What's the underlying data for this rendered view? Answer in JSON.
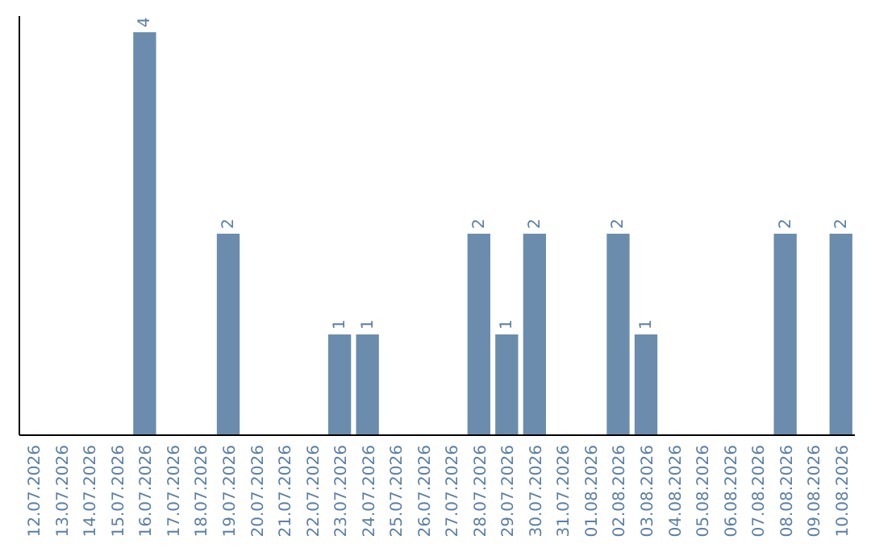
{
  "chart_data": {
    "type": "bar",
    "categories": [
      "12.07.2026",
      "13.07.2026",
      "14.07.2026",
      "15.07.2026",
      "16.07.2026",
      "17.07.2026",
      "18.07.2026",
      "19.07.2026",
      "20.07.2026",
      "21.07.2026",
      "22.07.2026",
      "23.07.2026",
      "24.07.2026",
      "25.07.2026",
      "26.07.2026",
      "27.07.2026",
      "28.07.2026",
      "29.07.2026",
      "30.07.2026",
      "31.07.2026",
      "01.08.2026",
      "02.08.2026",
      "03.08.2026",
      "04.08.2026",
      "05.08.2026",
      "06.08.2026",
      "07.08.2026",
      "08.08.2026",
      "09.08.2026",
      "10.08.2026"
    ],
    "values": [
      0,
      0,
      0,
      0,
      4,
      0,
      0,
      2,
      0,
      0,
      0,
      1,
      1,
      0,
      0,
      0,
      2,
      1,
      2,
      0,
      0,
      2,
      1,
      0,
      0,
      0,
      0,
      2,
      0,
      2
    ],
    "value_labels": [
      null,
      null,
      null,
      null,
      "4",
      null,
      null,
      "2",
      null,
      null,
      null,
      "1",
      "1",
      null,
      null,
      null,
      "2",
      "1",
      "2",
      null,
      null,
      "2",
      "1",
      null,
      null,
      null,
      null,
      "2",
      null,
      "2"
    ],
    "color": "#6b8cad",
    "tick_labels": "x"
  }
}
